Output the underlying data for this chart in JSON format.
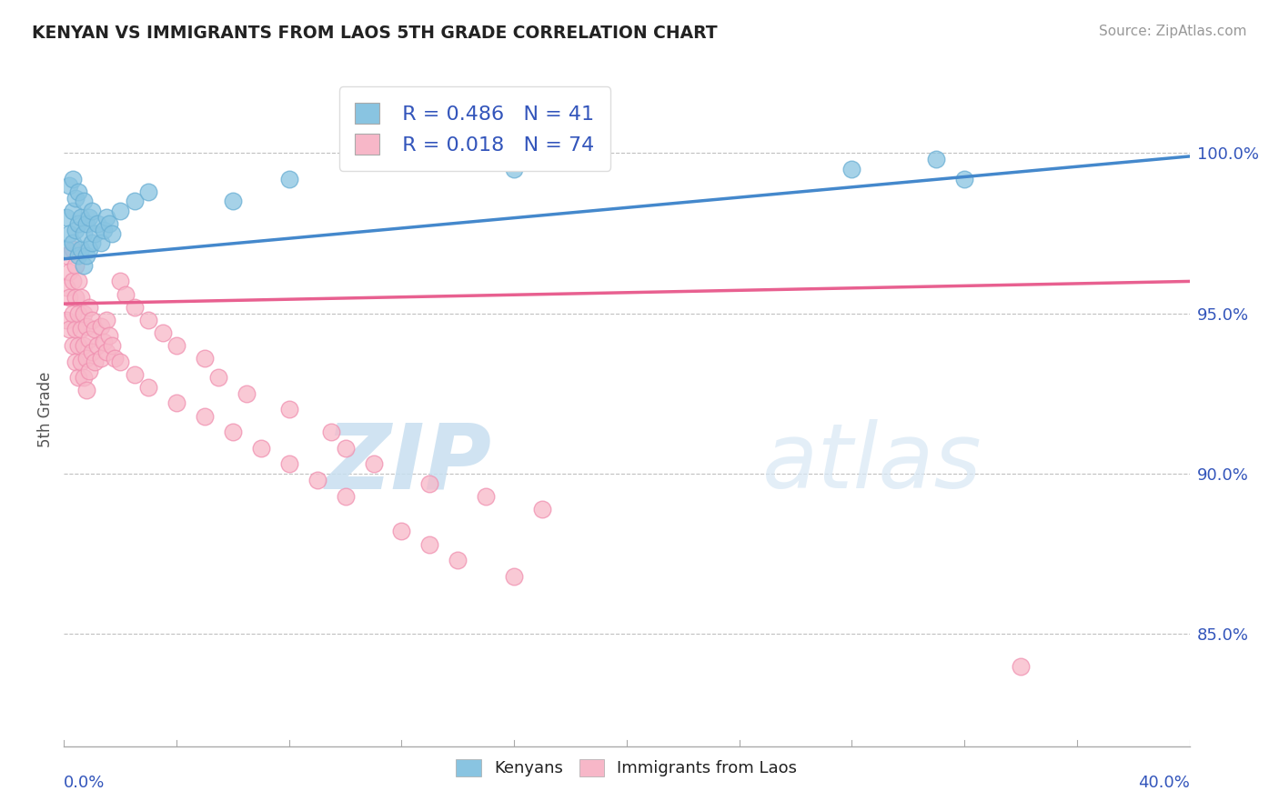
{
  "title": "KENYAN VS IMMIGRANTS FROM LAOS 5TH GRADE CORRELATION CHART",
  "source_text": "Source: ZipAtlas.com",
  "ylabel": "5th Grade",
  "yaxis_labels": [
    "100.0%",
    "95.0%",
    "90.0%",
    "85.0%"
  ],
  "yaxis_values": [
    1.0,
    0.95,
    0.9,
    0.85
  ],
  "xmin": 0.0,
  "xmax": 0.4,
  "ymin": 0.815,
  "ymax": 1.025,
  "legend_r_kenya": "R = 0.486",
  "legend_n_kenya": "N = 41",
  "legend_r_laos": "R = 0.018",
  "legend_n_laos": "N = 74",
  "kenya_color": "#89c4e1",
  "kenya_edge_color": "#6aafd4",
  "laos_color": "#f7b7c8",
  "laos_edge_color": "#f090b0",
  "kenya_line_color": "#4488cc",
  "laos_line_color": "#e86090",
  "watermark_text": "ZIPatlas",
  "watermark_color": "#dce9f5",
  "kenya_line_x": [
    0.0,
    0.4
  ],
  "kenya_line_y": [
    0.967,
    0.999
  ],
  "laos_line_x": [
    0.0,
    0.4
  ],
  "laos_line_y": [
    0.953,
    0.96
  ],
  "kenya_x": [
    0.001,
    0.001,
    0.002,
    0.002,
    0.003,
    0.003,
    0.003,
    0.004,
    0.004,
    0.005,
    0.005,
    0.005,
    0.006,
    0.006,
    0.007,
    0.007,
    0.007,
    0.008,
    0.008,
    0.009,
    0.009,
    0.01,
    0.01,
    0.011,
    0.012,
    0.013,
    0.014,
    0.015,
    0.016,
    0.017,
    0.02,
    0.025,
    0.03,
    0.06,
    0.08,
    0.12,
    0.16,
    0.19,
    0.28,
    0.31,
    0.32
  ],
  "kenya_y": [
    0.97,
    0.98,
    0.975,
    0.99,
    0.972,
    0.982,
    0.992,
    0.976,
    0.986,
    0.968,
    0.978,
    0.988,
    0.97,
    0.98,
    0.965,
    0.975,
    0.985,
    0.968,
    0.978,
    0.97,
    0.98,
    0.972,
    0.982,
    0.975,
    0.978,
    0.972,
    0.976,
    0.98,
    0.978,
    0.975,
    0.982,
    0.985,
    0.988,
    0.985,
    0.992,
    0.998,
    0.995,
    0.998,
    0.995,
    0.998,
    0.992
  ],
  "laos_x": [
    0.001,
    0.001,
    0.001,
    0.002,
    0.002,
    0.002,
    0.003,
    0.003,
    0.003,
    0.003,
    0.004,
    0.004,
    0.004,
    0.004,
    0.005,
    0.005,
    0.005,
    0.005,
    0.006,
    0.006,
    0.006,
    0.007,
    0.007,
    0.007,
    0.008,
    0.008,
    0.008,
    0.009,
    0.009,
    0.009,
    0.01,
    0.01,
    0.011,
    0.011,
    0.012,
    0.013,
    0.013,
    0.014,
    0.015,
    0.015,
    0.016,
    0.017,
    0.018,
    0.02,
    0.022,
    0.025,
    0.03,
    0.035,
    0.04,
    0.05,
    0.055,
    0.065,
    0.08,
    0.095,
    0.1,
    0.11,
    0.13,
    0.15,
    0.17,
    0.02,
    0.025,
    0.03,
    0.04,
    0.05,
    0.06,
    0.07,
    0.08,
    0.09,
    0.1,
    0.12,
    0.13,
    0.14,
    0.16,
    0.34
  ],
  "laos_y": [
    0.968,
    0.958,
    0.948,
    0.963,
    0.955,
    0.945,
    0.96,
    0.95,
    0.94,
    0.97,
    0.955,
    0.945,
    0.965,
    0.935,
    0.95,
    0.96,
    0.94,
    0.93,
    0.945,
    0.935,
    0.955,
    0.94,
    0.95,
    0.93,
    0.936,
    0.946,
    0.926,
    0.932,
    0.942,
    0.952,
    0.938,
    0.948,
    0.935,
    0.945,
    0.94,
    0.936,
    0.946,
    0.941,
    0.938,
    0.948,
    0.943,
    0.94,
    0.936,
    0.96,
    0.956,
    0.952,
    0.948,
    0.944,
    0.94,
    0.936,
    0.93,
    0.925,
    0.92,
    0.913,
    0.908,
    0.903,
    0.897,
    0.893,
    0.889,
    0.935,
    0.931,
    0.927,
    0.922,
    0.918,
    0.913,
    0.908,
    0.903,
    0.898,
    0.893,
    0.882,
    0.878,
    0.873,
    0.868,
    0.84
  ]
}
